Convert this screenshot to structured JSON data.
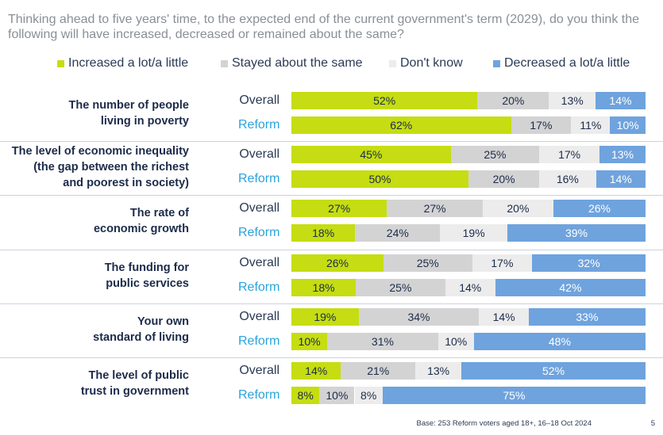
{
  "chart_data": {
    "type": "bar",
    "orientation": "horizontal",
    "stacked": true,
    "normalized": true,
    "title": "Thinking ahead to five years' time, to the expected end of the current government's term (2029), do you think the following will have increased, decreased or remained about the same?",
    "legend": [
      {
        "name": "Increased a lot/a little",
        "color": "#c5dd12"
      },
      {
        "name": "Stayed about the same",
        "color": "#d3d3d3"
      },
      {
        "name": "Don't know",
        "color": "#ececec"
      },
      {
        "name": "Decreased a lot/a little",
        "color": "#6fa3de"
      }
    ],
    "groups": [
      {
        "label": [
          "The number of people",
          "living in poverty"
        ],
        "rows": [
          {
            "name": "Overall",
            "values": [
              52,
              20,
              13,
              14
            ]
          },
          {
            "name": "Reform",
            "values": [
              62,
              17,
              11,
              10
            ]
          }
        ]
      },
      {
        "label": [
          "The level of economic inequality",
          "(the gap between the richest",
          "and poorest in society)"
        ],
        "rows": [
          {
            "name": "Overall",
            "values": [
              45,
              25,
              17,
              13
            ]
          },
          {
            "name": "Reform",
            "values": [
              50,
              20,
              16,
              14
            ]
          }
        ]
      },
      {
        "label": [
          "The rate of",
          "economic growth"
        ],
        "rows": [
          {
            "name": "Overall",
            "values": [
              27,
              27,
              20,
              26
            ]
          },
          {
            "name": "Reform",
            "values": [
              18,
              24,
              19,
              39
            ]
          }
        ]
      },
      {
        "label": [
          "The funding for",
          "public services"
        ],
        "rows": [
          {
            "name": "Overall",
            "values": [
              26,
              25,
              17,
              32
            ]
          },
          {
            "name": "Reform",
            "values": [
              18,
              25,
              14,
              42
            ]
          }
        ]
      },
      {
        "label": [
          "Your own",
          "standard of living"
        ],
        "rows": [
          {
            "name": "Overall",
            "values": [
              19,
              34,
              14,
              33
            ]
          },
          {
            "name": "Reform",
            "values": [
              10,
              31,
              10,
              48
            ]
          }
        ]
      },
      {
        "label": [
          "The level of public",
          "trust in government"
        ],
        "rows": [
          {
            "name": "Overall",
            "values": [
              14,
              21,
              13,
              52
            ]
          },
          {
            "name": "Reform",
            "values": [
              8,
              10,
              8,
              75
            ]
          }
        ]
      }
    ],
    "value_suffix": "%",
    "footer": "Base: 253 Reform voters aged 18+, 16–18 Oct 2024",
    "page_number": "5"
  }
}
